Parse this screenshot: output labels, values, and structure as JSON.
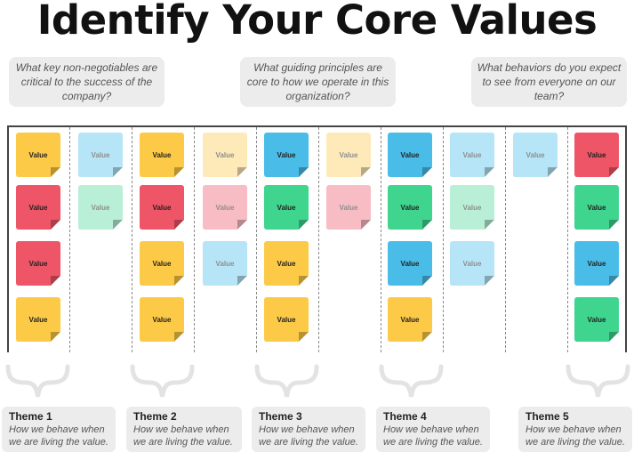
{
  "title": "Identify Your Core Values",
  "prompts": [
    "What key non-negotiables are critical to the success of the company?",
    "What guiding principles are core to how we operate in this organization?",
    "What behaviors do you expect to see from everyone on our team?"
  ],
  "note_label": "Value",
  "colors": {
    "yellow": "#fcca46",
    "red": "#ee5566",
    "blue": "#49bde8",
    "green": "#3fd58f",
    "light_yellow": "#feeab8",
    "light_pink": "#f8bcc5",
    "light_blue": "#b5e5f7",
    "light_green": "#b8efd6"
  },
  "columns": [
    [
      "yellow",
      "red",
      "red",
      "yellow"
    ],
    [
      "light_blue",
      "light_green"
    ],
    [
      "yellow",
      "red",
      "yellow",
      "yellow"
    ],
    [
      "light_yellow",
      "light_pink",
      "light_blue"
    ],
    [
      "blue",
      "green",
      "yellow",
      "yellow"
    ],
    [
      "light_yellow",
      "light_pink"
    ],
    [
      "blue",
      "green",
      "blue",
      "yellow"
    ],
    [
      "light_blue",
      "light_green",
      "light_blue"
    ],
    [
      "light_blue"
    ],
    [
      "red",
      "green",
      "blue",
      "green"
    ]
  ],
  "themes": [
    {
      "name": "Theme 1",
      "desc": "How we behave when we are living the value."
    },
    {
      "name": "Theme 2",
      "desc": "How we behave when we are living the value."
    },
    {
      "name": "Theme 3",
      "desc": "How we behave when we are living the value."
    },
    {
      "name": "Theme 4",
      "desc": "How we behave when we are living the value."
    },
    {
      "name": "Theme 5",
      "desc": "How we behave when we are living the value."
    }
  ]
}
